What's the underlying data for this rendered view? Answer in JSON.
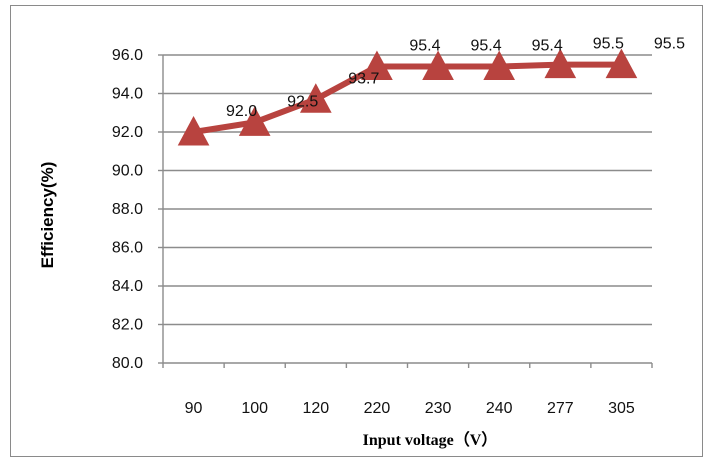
{
  "chart_data": {
    "type": "line",
    "categories": [
      "90",
      "100",
      "120",
      "220",
      "230",
      "240",
      "277",
      "305"
    ],
    "series": [
      {
        "values": [
          92.0,
          92.5,
          93.7,
          95.4,
          95.4,
          95.4,
          95.5,
          95.5
        ],
        "color": "#b8433f",
        "marker": "triangle"
      }
    ],
    "data_labels": [
      "92.0",
      "92.5",
      "93.7",
      "95.4",
      "95.4",
      "95.4",
      "95.5",
      "95.5"
    ],
    "y_ticks": [
      "80.0",
      "82.0",
      "84.0",
      "86.0",
      "88.0",
      "90.0",
      "92.0",
      "94.0",
      "96.0"
    ],
    "xlabel": "Input voltage（V）",
    "ylabel": "Efficiency(%)",
    "ylim": [
      80,
      96
    ],
    "grid": "horizontal",
    "legend": "none"
  }
}
